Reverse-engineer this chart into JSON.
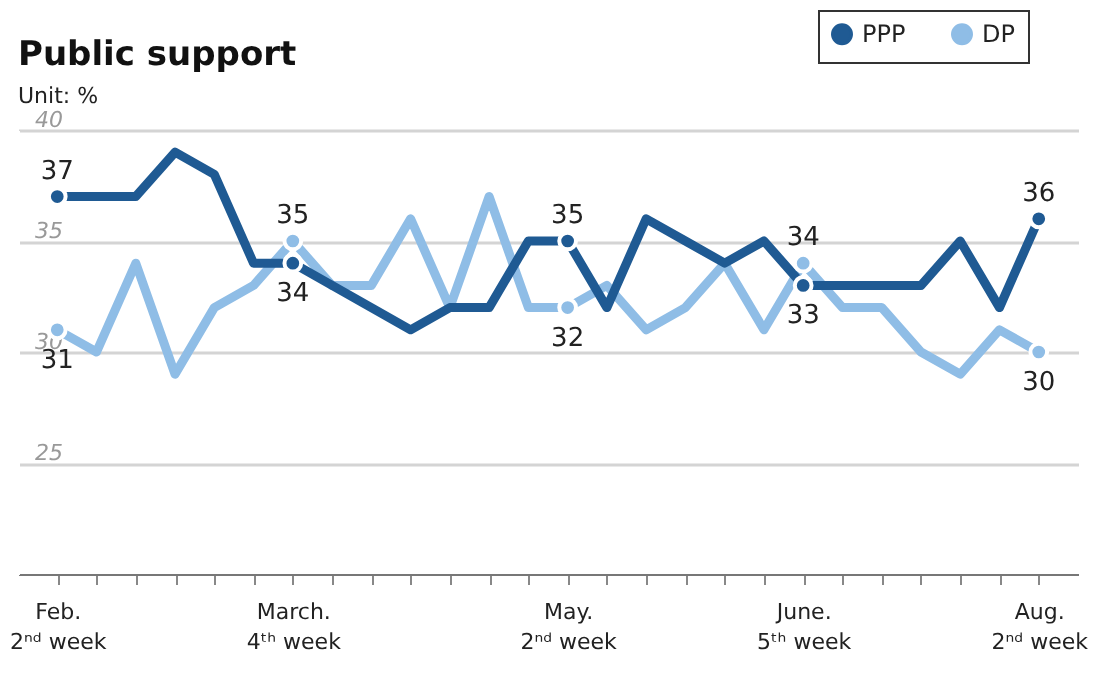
{
  "chart_data": {
    "type": "line",
    "title": "Public support",
    "subtitle": "Unit: %",
    "categories": [
      "Feb.\n2ⁿᵈ week",
      null,
      null,
      null,
      null,
      null,
      "March.\n4ᵗʰ week",
      null,
      null,
      null,
      null,
      null,
      null,
      "May.\n2ⁿᵈ week",
      null,
      null,
      null,
      null,
      null,
      "June.\n5ᵗʰ week",
      null,
      null,
      null,
      null,
      null,
      "Aug.\n2ⁿᵈ week"
    ],
    "series": [
      {
        "name": "PPP",
        "color": "#1f5a93",
        "values": [
          37,
          37,
          37,
          39,
          38,
          34,
          34,
          33,
          32,
          31,
          32,
          32,
          35,
          35,
          32,
          36,
          35,
          34,
          35,
          33,
          33,
          33,
          33,
          35,
          32,
          36
        ],
        "value_labels": [
          "37",
          null,
          null,
          null,
          null,
          null,
          "34",
          null,
          null,
          null,
          null,
          null,
          null,
          "35",
          null,
          null,
          null,
          null,
          null,
          "33",
          null,
          null,
          null,
          null,
          null,
          "36"
        ]
      },
      {
        "name": "DP",
        "color": "#8fbde6",
        "values": [
          31,
          30,
          34,
          29,
          32,
          33,
          35,
          33,
          33,
          36,
          32,
          37,
          32,
          32,
          33,
          31,
          32,
          34,
          31,
          34,
          32,
          32,
          30,
          29,
          31,
          30
        ],
        "value_labels": [
          "31",
          null,
          null,
          null,
          null,
          null,
          "35",
          null,
          null,
          null,
          null,
          null,
          null,
          "32",
          null,
          null,
          null,
          null,
          null,
          "34",
          null,
          null,
          null,
          null,
          null,
          "30"
        ]
      }
    ],
    "ylim": [
      20,
      40
    ],
    "yticks": [
      25,
      30,
      35,
      40
    ],
    "grid": "y",
    "legend": "top right",
    "line_style": "solid"
  }
}
